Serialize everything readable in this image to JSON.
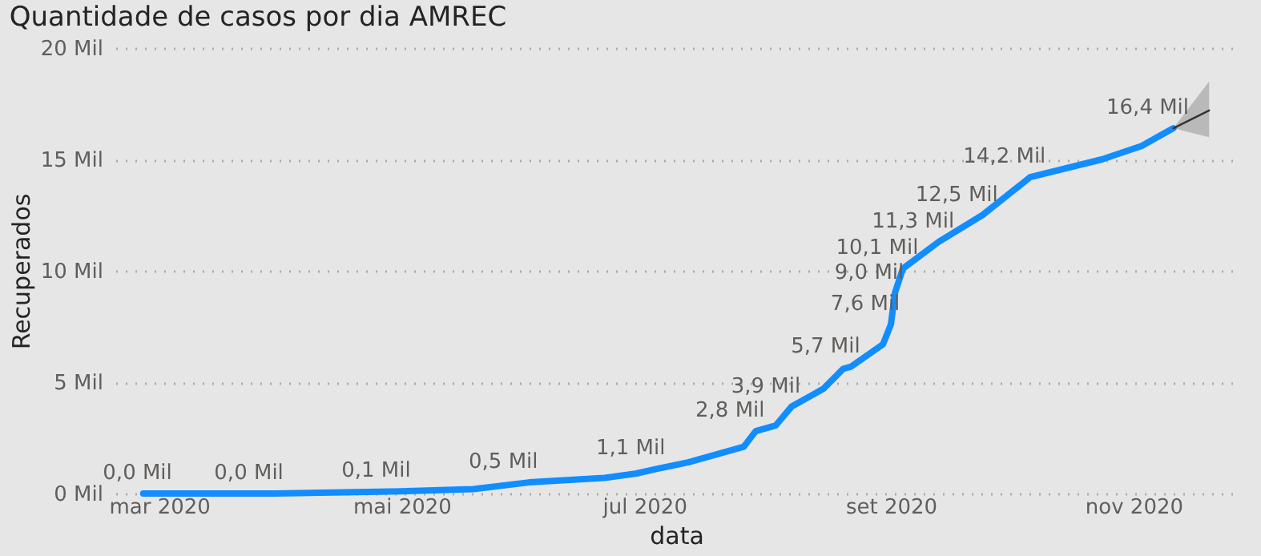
{
  "chart_data": {
    "type": "line",
    "title": "Quantidade de casos por dia AMREC",
    "xlabel": "data",
    "ylabel": "Recuperados",
    "xlim": [
      "2020-02-19",
      "2020-11-27"
    ],
    "xticks": [
      {
        "value": "2020-03-01",
        "label": "mar 2020"
      },
      {
        "value": "2020-05-01",
        "label": "mai 2020"
      },
      {
        "value": "2020-07-01",
        "label": "jul 2020"
      },
      {
        "value": "2020-09-01",
        "label": "set 2020"
      },
      {
        "value": "2020-11-01",
        "label": "nov 2020"
      }
    ],
    "ylim": [
      0,
      20
    ],
    "yticks": [
      {
        "value": 0,
        "label": "0 Mil"
      },
      {
        "value": 5,
        "label": "5 Mil"
      },
      {
        "value": 10,
        "label": "10 Mil"
      },
      {
        "value": 15,
        "label": "15 Mil"
      },
      {
        "value": 20,
        "label": "20 Mil"
      }
    ],
    "grid": "y",
    "marker": "none",
    "line_style": "solid",
    "series": [
      {
        "color": "#118dff",
        "x": [
          "2020-02-26",
          "2020-03-02",
          "2020-03-30",
          "2020-05-01",
          "2020-05-19",
          "2020-06-02",
          "2020-06-21",
          "2020-06-29",
          "2020-07-04",
          "2020-07-12",
          "2020-07-26",
          "2020-07-29",
          "2020-08-03",
          "2020-08-07",
          "2020-08-15",
          "2020-08-20",
          "2020-08-22",
          "2020-08-30",
          "2020-09-01",
          "2020-09-02",
          "2020-09-04",
          "2020-09-13",
          "2020-09-24",
          "2020-10-06",
          "2020-10-24",
          "2020-11-03",
          "2020-11-11"
        ],
        "values": [
          0,
          0,
          0,
          0.1,
          0.2,
          0.5,
          0.7,
          0.9,
          1.1,
          1.4,
          2.1,
          2.8,
          3.05,
          3.9,
          4.7,
          5.6,
          5.7,
          6.7,
          7.6,
          9.0,
          10.1,
          11.3,
          12.5,
          14.2,
          15.0,
          15.6,
          16.4
        ],
        "value_labels": [
          null,
          "0,0 Mil",
          "0,0 Mil",
          "0,1 Mil",
          null,
          "0,5 Mil",
          null,
          null,
          "1,1 Mil",
          null,
          null,
          "2,8 Mil",
          null,
          "3,9 Mil",
          null,
          null,
          "5,7 Mil",
          null,
          "7,6 Mil",
          "9,0 Mil",
          "10,1 Mil",
          "11,3 Mil",
          "12,5 Mil",
          "14,2 Mil",
          null,
          null,
          "16,4 Mil"
        ]
      },
      {
        "color": "#333333",
        "x": [
          "2020-11-11",
          "2020-11-20"
        ],
        "values": [
          16.4,
          17.2
        ],
        "lower": [
          16.4,
          16.0
        ],
        "upper": [
          16.4,
          18.5
        ]
      }
    ]
  }
}
